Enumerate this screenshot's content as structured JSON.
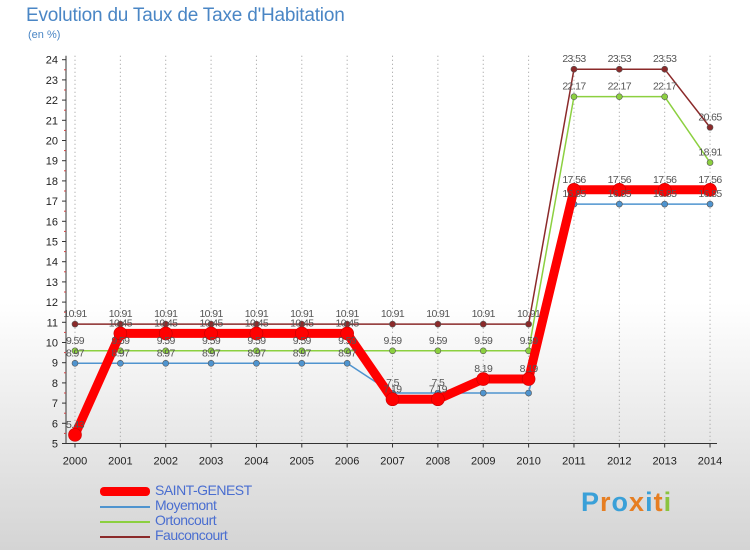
{
  "header": {
    "title": "Evolution du Taux de Taxe d'Habitation",
    "subtitle": "(en %)"
  },
  "logo": {
    "text": "Proxiti",
    "colors": [
      "#3aa0d8",
      "#e67e22",
      "#3aa0d8",
      "#e67e22",
      "#3aa0d8",
      "#e67e22",
      "#8ac43f"
    ]
  },
  "chart_data": {
    "type": "line",
    "title": "Evolution du Taux de Taxe d'Habitation",
    "ylabel": "(en %)",
    "xlabel": "",
    "x": [
      "2000",
      "2001",
      "2002",
      "2003",
      "2004",
      "2005",
      "2006",
      "2007",
      "2008",
      "2009",
      "2010",
      "2011",
      "2012",
      "2013",
      "2014"
    ],
    "ylim": [
      5,
      24
    ],
    "yticks": [
      5,
      6,
      7,
      8,
      9,
      10,
      11,
      12,
      13,
      14,
      15,
      16,
      17,
      18,
      19,
      20,
      21,
      22,
      23,
      24
    ],
    "grid": "vertical-dotted",
    "legend_position": "bottom-left",
    "series": [
      {
        "name": "SAINT-GENEST",
        "color": "#ff0000",
        "values": [
          5.43,
          10.45,
          10.45,
          10.45,
          10.45,
          10.45,
          10.45,
          7.19,
          7.19,
          8.19,
          8.19,
          17.56,
          17.56,
          17.56,
          17.56
        ],
        "labels": [
          "5.43",
          "10.45",
          "10.45",
          "10.45",
          "10.45",
          "10.45",
          "10.45",
          "7.19",
          "7.19",
          "8.19",
          "8.19",
          "17.56",
          "17.56",
          "17.56",
          "17.56"
        ]
      },
      {
        "name": "Moyemont",
        "color": "#4f94cf",
        "values": [
          8.97,
          8.97,
          8.97,
          8.97,
          8.97,
          8.97,
          8.97,
          7.5,
          7.5,
          7.5,
          7.5,
          16.85,
          16.85,
          16.85,
          16.85
        ],
        "labels": [
          "8.97",
          "8.97",
          "8.97",
          "8.97",
          "8.97",
          "8.97",
          "8.97",
          "7.5",
          "7.5",
          "",
          "",
          "16.85",
          "16.85",
          "16.85",
          "16.85"
        ]
      },
      {
        "name": "Ortoncourt",
        "color": "#8cd040",
        "values": [
          9.59,
          9.59,
          9.59,
          9.59,
          9.59,
          9.59,
          9.59,
          9.59,
          9.59,
          9.59,
          9.59,
          22.17,
          22.17,
          22.17,
          18.91
        ],
        "labels": [
          "9.59",
          "9.59",
          "9.59",
          "9.59",
          "9.59",
          "9.59",
          "9.59",
          "9.59",
          "9.59",
          "9.59",
          "9.59",
          "22.17",
          "22.17",
          "22.17",
          "18.91"
        ]
      },
      {
        "name": "Fauconcourt",
        "color": "#8b2a2a",
        "values": [
          10.91,
          10.91,
          10.91,
          10.91,
          10.91,
          10.91,
          10.91,
          10.91,
          10.91,
          10.91,
          10.91,
          23.53,
          23.53,
          23.53,
          20.65
        ],
        "labels": [
          "10.91",
          "10.91",
          "10.91",
          "10.91",
          "10.91",
          "10.91",
          "10.91",
          "10.91",
          "10.91",
          "10.91",
          "10.91",
          "23.53",
          "23.53",
          "23.53",
          "20.65"
        ]
      }
    ]
  }
}
